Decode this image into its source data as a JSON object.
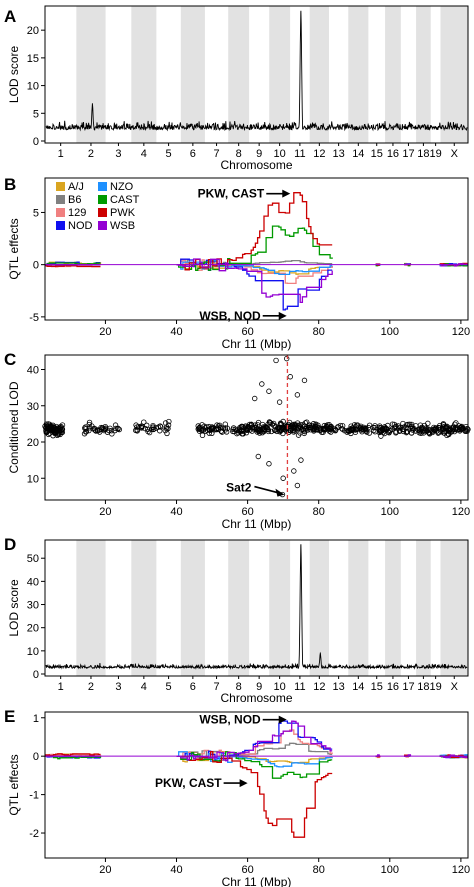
{
  "chart_data": [
    {
      "panel": "A",
      "type": "line",
      "xlabel": "Chromosome",
      "ylabel": "LOD score",
      "ylim": [
        0,
        24
      ],
      "yticks": [
        0,
        5,
        10,
        15,
        20
      ],
      "chromosomes": [
        "1",
        "2",
        "3",
        "4",
        "5",
        "6",
        "7",
        "8",
        "9",
        "10",
        "11",
        "12",
        "13",
        "14",
        "15",
        "16",
        "17",
        "18",
        "19",
        "X"
      ],
      "shaded_chromosomes": [
        "2",
        "4",
        "6",
        "8",
        "10",
        "12",
        "14",
        "16",
        "18",
        "X"
      ],
      "baseline_lod": 2.0,
      "peaks": [
        {
          "chromosome": "11",
          "lod": 23.5
        },
        {
          "chromosome": "2",
          "lod": 6.8
        }
      ]
    },
    {
      "panel": "B",
      "type": "line",
      "xlabel": "Chr 11 (Mbp)",
      "ylabel": "QTL effects",
      "xlim": [
        3,
        122
      ],
      "ylim": [
        -5.3,
        8.3
      ],
      "xticks": [
        20,
        40,
        60,
        80,
        100,
        120
      ],
      "yticks": [
        -5,
        0,
        5
      ],
      "legend": [
        "A/J",
        "B6",
        "129",
        "NOD",
        "NZO",
        "CAST",
        "PWK",
        "WSB"
      ],
      "colors": [
        "#DAA520",
        "#808080",
        "#F08080",
        "#1010F0",
        "#1E90FF",
        "#009A00",
        "#CC0000",
        "#9400D3"
      ],
      "annotations": [
        {
          "text": "PKW, CAST",
          "x": 72,
          "y": 6.8
        },
        {
          "text": "WSB, NOD",
          "x": 71,
          "y": -4.9
        }
      ],
      "series": [
        {
          "name": "A/J",
          "peak": -1.0
        },
        {
          "name": "B6",
          "peak": 0.4
        },
        {
          "name": "129",
          "peak": -1.8
        },
        {
          "name": "NOD",
          "peak": -4.4
        },
        {
          "name": "NZO",
          "peak": -1.0
        },
        {
          "name": "CAST",
          "peak": 4.5
        },
        {
          "name": "PWK",
          "peak": 8.0
        },
        {
          "name": "WSB",
          "peak": -5.0
        }
      ]
    },
    {
      "panel": "C",
      "type": "scatter",
      "xlabel": "Chr 11 (Mbp)",
      "ylabel": "Conditioned LOD",
      "xlim": [
        3,
        122
      ],
      "ylim": [
        4,
        44
      ],
      "xticks": [
        20,
        40,
        60,
        80,
        100,
        120
      ],
      "yticks": [
        10,
        20,
        30,
        40
      ],
      "vline_x": 71.2,
      "annotation": {
        "text": "Sat2",
        "x": 71.2,
        "y": 5.5
      },
      "point_groups": [
        {
          "x_range": [
            3,
            8
          ],
          "mean": 23.5,
          "n": 80
        },
        {
          "x_range": [
            14,
            24
          ],
          "mean": 23.5,
          "n": 40
        },
        {
          "x_range": [
            28,
            38
          ],
          "mean": 23.8,
          "n": 35
        },
        {
          "x_range": [
            46,
            59
          ],
          "mean": 23.5,
          "n": 70
        },
        {
          "x_range": [
            59,
            84
          ],
          "mean": 24.0,
          "n": 200
        },
        {
          "x_range": [
            84,
            96
          ],
          "mean": 23.5,
          "n": 60
        },
        {
          "x_range": [
            97,
            122
          ],
          "mean": 23.5,
          "n": 170
        }
      ],
      "outliers": [
        [
          68,
          42.5
        ],
        [
          71,
          43
        ],
        [
          72,
          38
        ],
        [
          76,
          37
        ],
        [
          64,
          36
        ],
        [
          66,
          34
        ],
        [
          74,
          33
        ],
        [
          62,
          32
        ],
        [
          69,
          31
        ],
        [
          73,
          12
        ],
        [
          70,
          10
        ],
        [
          66,
          14
        ],
        [
          69.8,
          5.5
        ],
        [
          75,
          15
        ],
        [
          63,
          16
        ],
        [
          74,
          8
        ]
      ]
    },
    {
      "panel": "D",
      "type": "line",
      "xlabel": "Chromosome",
      "ylabel": "LOD score",
      "ylim": [
        0,
        57
      ],
      "yticks": [
        0,
        10,
        20,
        30,
        40,
        50
      ],
      "chromosomes": [
        "1",
        "2",
        "3",
        "4",
        "5",
        "6",
        "7",
        "8",
        "9",
        "10",
        "11",
        "12",
        "13",
        "14",
        "15",
        "16",
        "17",
        "18",
        "19",
        "X"
      ],
      "shaded_chromosomes": [
        "2",
        "4",
        "6",
        "8",
        "10",
        "12",
        "14",
        "16",
        "18",
        "X"
      ],
      "baseline_lod": 2.5,
      "peaks": [
        {
          "chromosome": "11",
          "lod": 56
        },
        {
          "chromosome": "12",
          "lod": 9.0
        }
      ]
    },
    {
      "panel": "E",
      "type": "line",
      "xlabel": "Chr 11 (Mbp)",
      "ylabel": "QTL effects",
      "xlim": [
        3,
        122
      ],
      "ylim": [
        -2.65,
        1.15
      ],
      "xticks": [
        20,
        40,
        60,
        80,
        100,
        120
      ],
      "yticks": [
        -2,
        -1,
        0,
        1
      ],
      "annotations": [
        {
          "text": "WSB, NOD",
          "x": 71,
          "y": 0.95
        },
        {
          "text": "PKW, CAST",
          "x": 60,
          "y": -0.7
        }
      ],
      "series": [
        {
          "name": "A/J",
          "peak": -0.2
        },
        {
          "name": "B6",
          "peak": 0.35
        },
        {
          "name": "129",
          "peak": 0.7
        },
        {
          "name": "NOD",
          "peak": 0.95
        },
        {
          "name": "NZO",
          "peak": -0.3
        },
        {
          "name": "CAST",
          "peak": -0.7
        },
        {
          "name": "PWK",
          "peak": -2.45
        },
        {
          "name": "WSB",
          "peak": 0.95
        }
      ]
    }
  ]
}
